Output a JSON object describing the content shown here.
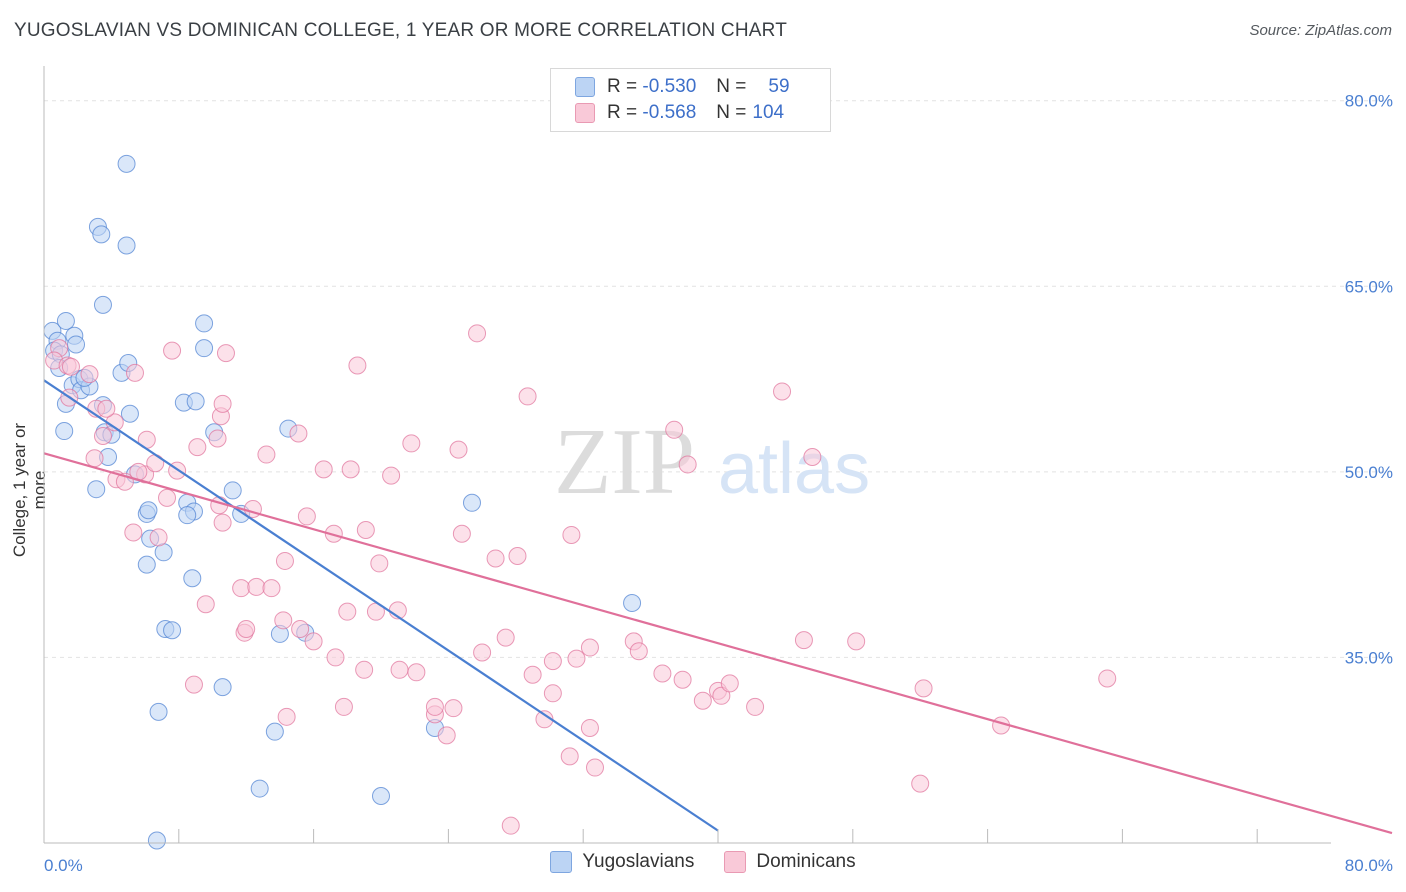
{
  "title": "YUGOSLAVIAN VS DOMINICAN COLLEGE, 1 YEAR OR MORE CORRELATION CHART",
  "source": "Source: ZipAtlas.com",
  "watermark": {
    "zip": "ZIP",
    "atlas": "atlas"
  },
  "legend_top": {
    "rows": [
      {
        "r_label": "R =",
        "r_value": "-0.530",
        "n_label": "N =",
        "n_value": "59",
        "color": "#4a7fd1"
      },
      {
        "r_label": "R =",
        "r_value": "-0.568",
        "n_label": "N =",
        "n_value": "104",
        "color": "#e0709a"
      }
    ]
  },
  "legend_bottom": {
    "blue": "Yugoslavians",
    "pink": "Dominicans"
  },
  "chart_data": {
    "type": "scatter",
    "title": "YUGOSLAVIAN VS DOMINICAN COLLEGE, 1 YEAR OR MORE CORRELATION CHART",
    "xlabel": "",
    "ylabel": "College, 1 year or more",
    "xlim": [
      0,
      80
    ],
    "ylim": [
      20,
      82
    ],
    "x_tick_labels": [
      "0.0%",
      "80.0%"
    ],
    "y_ticks": [
      35,
      50,
      65,
      80
    ],
    "y_tick_labels": [
      "35.0%",
      "50.0%",
      "65.0%",
      "80.0%"
    ],
    "grid": true,
    "series": [
      {
        "name": "Yugoslavians",
        "color": "#4a7fd1",
        "fill": "#bcd4f4",
        "trend": {
          "x": [
            0,
            40
          ],
          "y": [
            57.4,
            21.0
          ]
        },
        "points": [
          [
            0.5,
            61.4
          ],
          [
            0.8,
            60.6
          ],
          [
            0.6,
            59.8
          ],
          [
            1.0,
            59.5
          ],
          [
            0.9,
            58.4
          ],
          [
            1.3,
            62.2
          ],
          [
            1.8,
            61.0
          ],
          [
            1.9,
            60.3
          ],
          [
            1.7,
            57.0
          ],
          [
            2.1,
            57.5
          ],
          [
            2.2,
            56.6
          ],
          [
            2.7,
            56.9
          ],
          [
            2.4,
            57.6
          ],
          [
            1.3,
            55.5
          ],
          [
            3.5,
            55.4
          ],
          [
            3.5,
            63.5
          ],
          [
            4.6,
            58.0
          ],
          [
            5.0,
            58.8
          ],
          [
            3.2,
            69.8
          ],
          [
            3.4,
            69.2
          ],
          [
            4.9,
            74.9
          ],
          [
            4.9,
            68.3
          ],
          [
            9.5,
            62.0
          ],
          [
            9.5,
            60.0
          ],
          [
            8.3,
            55.6
          ],
          [
            9.0,
            55.7
          ],
          [
            10.1,
            53.2
          ],
          [
            14.5,
            53.5
          ],
          [
            1.2,
            53.3
          ],
          [
            3.6,
            53.2
          ],
          [
            4.0,
            53.0
          ],
          [
            5.1,
            54.7
          ],
          [
            3.8,
            51.2
          ],
          [
            5.4,
            49.8
          ],
          [
            3.1,
            48.6
          ],
          [
            8.5,
            47.5
          ],
          [
            6.1,
            46.6
          ],
          [
            8.9,
            46.8
          ],
          [
            8.5,
            46.5
          ],
          [
            11.7,
            46.6
          ],
          [
            11.2,
            48.5
          ],
          [
            6.3,
            44.6
          ],
          [
            7.1,
            43.5
          ],
          [
            6.1,
            42.5
          ],
          [
            8.8,
            41.4
          ],
          [
            7.2,
            37.3
          ],
          [
            7.6,
            37.2
          ],
          [
            14.0,
            36.9
          ],
          [
            15.5,
            37.0
          ],
          [
            10.6,
            32.6
          ],
          [
            6.8,
            30.6
          ],
          [
            13.7,
            29.0
          ],
          [
            23.2,
            29.3
          ],
          [
            12.8,
            24.4
          ],
          [
            20.0,
            23.8
          ],
          [
            6.7,
            20.2
          ],
          [
            25.4,
            47.5
          ],
          [
            34.9,
            39.4
          ],
          [
            6.2,
            46.9
          ]
        ]
      },
      {
        "name": "Dominicans",
        "color": "#e0709a",
        "fill": "#f9c9d8",
        "trend": {
          "x": [
            0,
            80
          ],
          "y": [
            51.5,
            20.8
          ]
        },
        "points": [
          [
            0.9,
            60.0
          ],
          [
            0.6,
            59.0
          ],
          [
            1.4,
            58.6
          ],
          [
            1.6,
            58.5
          ],
          [
            1.5,
            56.0
          ],
          [
            2.7,
            57.9
          ],
          [
            3.1,
            55.1
          ],
          [
            5.4,
            58.0
          ],
          [
            7.6,
            59.8
          ],
          [
            10.8,
            59.6
          ],
          [
            18.6,
            58.6
          ],
          [
            25.7,
            61.2
          ],
          [
            28.7,
            56.1
          ],
          [
            43.8,
            56.5
          ],
          [
            45.6,
            51.2
          ],
          [
            37.4,
            53.4
          ],
          [
            38.2,
            50.6
          ],
          [
            3.5,
            52.9
          ],
          [
            4.2,
            54.0
          ],
          [
            6.1,
            52.6
          ],
          [
            6.0,
            49.8
          ],
          [
            5.6,
            50.0
          ],
          [
            9.1,
            52.0
          ],
          [
            10.3,
            52.7
          ],
          [
            10.5,
            54.5
          ],
          [
            10.6,
            55.5
          ],
          [
            13.2,
            51.4
          ],
          [
            15.1,
            53.1
          ],
          [
            16.6,
            50.2
          ],
          [
            18.2,
            50.2
          ],
          [
            20.6,
            49.7
          ],
          [
            21.8,
            52.3
          ],
          [
            24.6,
            51.8
          ],
          [
            3.0,
            51.1
          ],
          [
            4.3,
            49.4
          ],
          [
            4.8,
            49.2
          ],
          [
            6.6,
            50.7
          ],
          [
            7.9,
            50.1
          ],
          [
            7.3,
            47.9
          ],
          [
            10.4,
            47.3
          ],
          [
            10.6,
            45.9
          ],
          [
            12.4,
            47.0
          ],
          [
            15.6,
            46.4
          ],
          [
            17.2,
            45.0
          ],
          [
            19.1,
            45.3
          ],
          [
            24.8,
            45.0
          ],
          [
            28.1,
            43.2
          ],
          [
            31.3,
            44.9
          ],
          [
            5.3,
            45.1
          ],
          [
            6.8,
            44.7
          ],
          [
            14.3,
            42.8
          ],
          [
            19.9,
            42.6
          ],
          [
            26.8,
            43.0
          ],
          [
            9.6,
            39.3
          ],
          [
            11.7,
            40.6
          ],
          [
            12.6,
            40.7
          ],
          [
            13.5,
            40.6
          ],
          [
            11.9,
            37.0
          ],
          [
            12.0,
            37.3
          ],
          [
            14.2,
            38.0
          ],
          [
            15.2,
            37.3
          ],
          [
            16.0,
            36.3
          ],
          [
            17.3,
            35.0
          ],
          [
            18.0,
            38.7
          ],
          [
            19.7,
            38.7
          ],
          [
            21.0,
            38.8
          ],
          [
            19.0,
            34.0
          ],
          [
            21.1,
            34.0
          ],
          [
            22.1,
            33.8
          ],
          [
            26.0,
            35.4
          ],
          [
            27.4,
            36.6
          ],
          [
            29.0,
            33.6
          ],
          [
            30.2,
            34.7
          ],
          [
            31.6,
            34.9
          ],
          [
            32.4,
            35.8
          ],
          [
            35.0,
            36.3
          ],
          [
            35.3,
            35.5
          ],
          [
            36.7,
            33.7
          ],
          [
            37.9,
            33.2
          ],
          [
            39.1,
            31.5
          ],
          [
            40.0,
            32.3
          ],
          [
            40.2,
            31.9
          ],
          [
            40.7,
            32.9
          ],
          [
            42.2,
            31.0
          ],
          [
            45.1,
            36.4
          ],
          [
            48.2,
            36.3
          ],
          [
            52.2,
            32.5
          ],
          [
            56.8,
            29.5
          ],
          [
            63.1,
            33.3
          ],
          [
            32.4,
            29.3
          ],
          [
            30.2,
            32.1
          ],
          [
            29.7,
            30.0
          ],
          [
            23.9,
            28.7
          ],
          [
            23.2,
            30.4
          ],
          [
            17.8,
            31.0
          ],
          [
            14.4,
            30.2
          ],
          [
            23.2,
            31.0
          ],
          [
            31.2,
            27.0
          ],
          [
            32.7,
            26.1
          ],
          [
            52.0,
            24.8
          ],
          [
            27.7,
            21.4
          ],
          [
            24.3,
            30.9
          ],
          [
            8.9,
            32.8
          ],
          [
            3.7,
            55.1
          ]
        ]
      }
    ]
  }
}
